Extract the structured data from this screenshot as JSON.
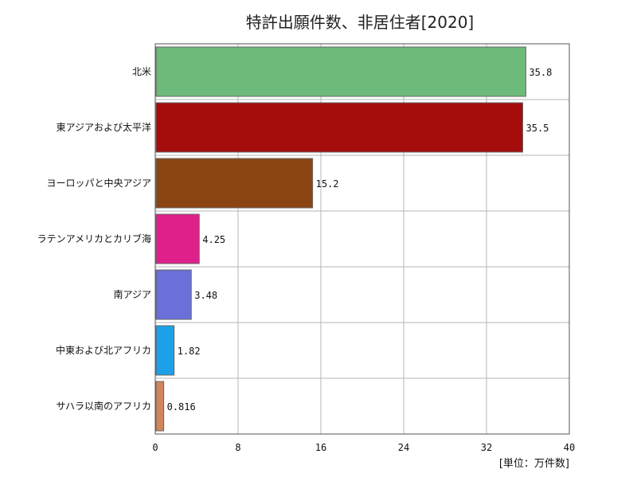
{
  "chart_data": {
    "type": "bar",
    "orientation": "horizontal",
    "title": "特許出願件数、非居住者[2020]",
    "unit": "[単位：万件数]",
    "categories": [
      "北米",
      "東アジアおよび太平洋",
      "ヨーロッパと中央アジア",
      "ラテンアメリカとカリブ海",
      "南アジア",
      "中東および北アフリカ",
      "サハラ以南のアフリカ"
    ],
    "values": [
      35.8,
      35.5,
      15.2,
      4.25,
      3.48,
      1.82,
      0.816
    ],
    "value_labels": [
      "35.8",
      "35.5",
      "15.2",
      "4.25",
      "3.48",
      "1.82",
      "0.816"
    ],
    "colors": [
      "#6dba7b",
      "#a50d0d",
      "#8b4513",
      "#e0208a",
      "#6a70d8",
      "#1ea0e8",
      "#d2855a"
    ],
    "xlim": [
      0,
      40
    ],
    "xticks": [
      0,
      8,
      16,
      24,
      32,
      40
    ],
    "grid": true
  }
}
